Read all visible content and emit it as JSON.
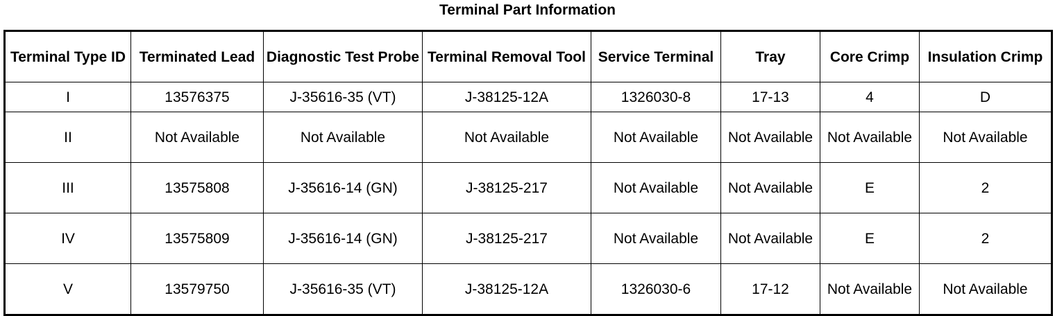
{
  "title": "Terminal Part Information",
  "columns": [
    "Terminal Type ID",
    "Terminated Lead",
    "Diagnostic Test Probe",
    "Terminal Removal Tool",
    "Service Terminal",
    "Tray",
    "Core Crimp",
    "Insulation Crimp"
  ],
  "rows": [
    [
      "I",
      "13576375",
      "J-35616-35 (VT)",
      "J-38125-12A",
      "1326030-8",
      "17-13",
      "4",
      "D"
    ],
    [
      "II",
      "Not Available",
      "Not Available",
      "Not Available",
      "Not Available",
      "Not Available",
      "Not Available",
      "Not Available"
    ],
    [
      "III",
      "13575808",
      "J-35616-14 (GN)",
      "J-38125-217",
      "Not Available",
      "Not Available",
      "E",
      "2"
    ],
    [
      "IV",
      "13575809",
      "J-35616-14 (GN)",
      "J-38125-217",
      "Not Available",
      "Not Available",
      "E",
      "2"
    ],
    [
      "V",
      "13579750",
      "J-35616-35 (VT)",
      "J-38125-12A",
      "1326030-6",
      "17-12",
      "Not Available",
      "Not Available"
    ]
  ]
}
